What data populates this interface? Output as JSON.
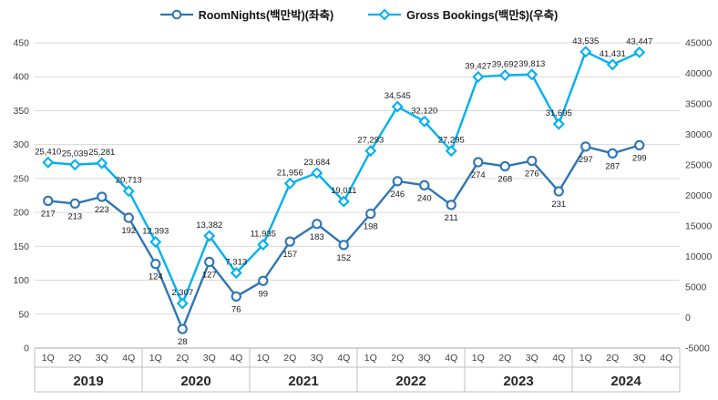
{
  "legend": [
    {
      "label": "RoomNights(백만박)(좌축)",
      "color": "#2e75b6",
      "marker": "circle"
    },
    {
      "label": "Gross Bookings(백만$)(우축)",
      "color": "#00b0f0",
      "marker": "diamond"
    }
  ],
  "chart_data": {
    "type": "line",
    "categories": [
      "1Q",
      "2Q",
      "3Q",
      "4Q",
      "1Q",
      "2Q",
      "3Q",
      "4Q",
      "1Q",
      "2Q",
      "3Q",
      "4Q",
      "1Q",
      "2Q",
      "3Q",
      "4Q",
      "1Q",
      "2Q",
      "3Q",
      "4Q",
      "1Q",
      "2Q",
      "3Q",
      "4Q"
    ],
    "category_groups": [
      {
        "label": "2019",
        "span": 4
      },
      {
        "label": "2020",
        "span": 4
      },
      {
        "label": "2021",
        "span": 4
      },
      {
        "label": "2022",
        "span": 4
      },
      {
        "label": "2023",
        "span": 4
      },
      {
        "label": "2024",
        "span": 4
      }
    ],
    "series": [
      {
        "name": "RoomNights(백만박)(좌축)",
        "name_slug": "roomnights",
        "axis": "left",
        "color": "#2e75b6",
        "marker": "circle",
        "labels": "below",
        "values": [
          217,
          213,
          223,
          192,
          124,
          28,
          127,
          76,
          99,
          157,
          183,
          152,
          198,
          246,
          240,
          211,
          274,
          268,
          276,
          231,
          297,
          287,
          299,
          null
        ]
      },
      {
        "name": "Gross Bookings(백만$)(우축)",
        "name_slug": "gross-bookings",
        "axis": "right",
        "color": "#00b0f0",
        "marker": "diamond",
        "labels": "above",
        "values": [
          25410,
          25039,
          25281,
          20713,
          12393,
          2307,
          13382,
          7313,
          11935,
          21956,
          23684,
          19011,
          27293,
          34545,
          32120,
          27295,
          39427,
          39692,
          39813,
          31695,
          43535,
          41431,
          43447,
          null
        ]
      }
    ],
    "left_axis": {
      "min": 0,
      "max": 450,
      "ticks": [
        450,
        400,
        350,
        300,
        250,
        200,
        150,
        100,
        50,
        0
      ]
    },
    "right_axis": {
      "min": -5000,
      "max": 45000,
      "ticks": [
        45000,
        40000,
        35000,
        30000,
        25000,
        20000,
        15000,
        10000,
        5000,
        0,
        -5000
      ]
    },
    "grid": true,
    "legend_position": "top",
    "title": ""
  }
}
